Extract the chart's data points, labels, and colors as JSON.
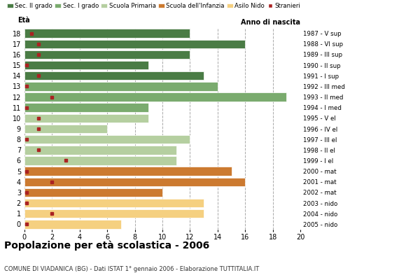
{
  "ages": [
    18,
    17,
    16,
    15,
    14,
    13,
    12,
    11,
    10,
    9,
    8,
    7,
    6,
    5,
    4,
    3,
    2,
    1,
    0
  ],
  "years": [
    "1987 - V sup",
    "1988 - VI sup",
    "1989 - III sup",
    "1990 - II sup",
    "1991 - I sup",
    "1992 - III med",
    "1993 - II med",
    "1994 - I med",
    "1995 - V el",
    "1996 - IV el",
    "1997 - III el",
    "1998 - II el",
    "1999 - I el",
    "2000 - mat",
    "2001 - mat",
    "2002 - mat",
    "2003 - nido",
    "2004 - nido",
    "2005 - nido"
  ],
  "bar_values": [
    12,
    16,
    12,
    9,
    13,
    14,
    19,
    9,
    9,
    6,
    12,
    11,
    11,
    15,
    16,
    10,
    13,
    13,
    7
  ],
  "stranieri_marker_x": [
    0.5,
    1,
    1,
    0.15,
    1,
    0.15,
    2,
    0.15,
    1,
    1,
    0.15,
    1,
    3,
    0.15,
    2,
    0.15,
    0.15,
    2,
    0.15
  ],
  "bar_colors": [
    "#4a7c45",
    "#4a7c45",
    "#4a7c45",
    "#4a7c45",
    "#4a7c45",
    "#7aab6e",
    "#7aab6e",
    "#7aab6e",
    "#b5cfa0",
    "#b5cfa0",
    "#b5cfa0",
    "#b5cfa0",
    "#b5cfa0",
    "#cc7a30",
    "#cc7a30",
    "#cc7a30",
    "#f5d080",
    "#f5d080",
    "#f5d080"
  ],
  "legend_colors": [
    "#4a7c45",
    "#7aab6e",
    "#b5cfa0",
    "#cc7a30",
    "#f5d080"
  ],
  "stranieri_color": "#aa2222",
  "legend_labels": [
    "Sec. II grado",
    "Sec. I grado",
    "Scuola Primaria",
    "Scuola dell'Infanzia",
    "Asilo Nido",
    "Stranieri"
  ],
  "title": "Popolazione per età scolastica - 2006",
  "subtitle": "COMUNE DI VIADANICA (BG) - Dati ISTAT 1° gennaio 2006 - Elaborazione TUTTITALIA.IT",
  "xlabel_left": "Età",
  "xlabel_right": "Anno di nascita",
  "xlim": [
    0,
    20
  ],
  "xticks": [
    0,
    2,
    4,
    6,
    8,
    10,
    12,
    14,
    16,
    18,
    20
  ],
  "bg_color": "#ffffff",
  "bar_height": 0.82
}
